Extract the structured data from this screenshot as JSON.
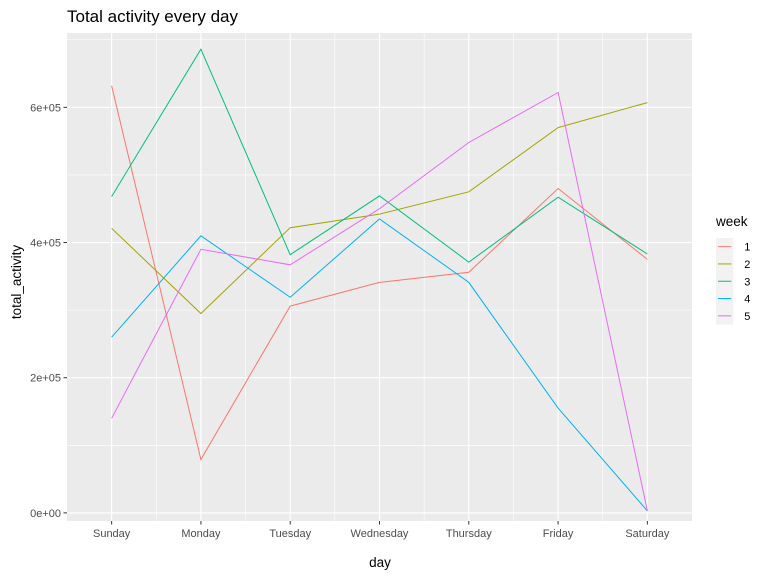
{
  "chart_data": {
    "type": "line",
    "title": "Total activity every day",
    "xlabel": "day",
    "ylabel": "total_activity",
    "categories": [
      "Sunday",
      "Monday",
      "Tuesday",
      "Wednesday",
      "Thursday",
      "Friday",
      "Saturday"
    ],
    "ylim": [
      -12000,
      710000
    ],
    "yticks": [
      0,
      200000,
      400000,
      600000
    ],
    "ytick_labels": [
      "0e+00",
      "2e+05",
      "4e+05",
      "6e+05"
    ],
    "grid": true,
    "legend_title": "week",
    "legend_position": "right",
    "series": [
      {
        "name": "1",
        "color": "#F8766D",
        "values": [
          632000,
          79000,
          306000,
          341000,
          356000,
          480000,
          375000
        ]
      },
      {
        "name": "2",
        "color": "#A3A500",
        "values": [
          421000,
          295000,
          422000,
          442000,
          475000,
          570000,
          607000
        ]
      },
      {
        "name": "3",
        "color": "#00BF7D",
        "values": [
          468000,
          686000,
          382000,
          469000,
          371000,
          467000,
          383000
        ]
      },
      {
        "name": "4",
        "color": "#00B0F6",
        "values": [
          260000,
          410000,
          319000,
          435000,
          341000,
          155000,
          3000
        ]
      },
      {
        "name": "5",
        "color": "#E76BF3",
        "values": [
          140000,
          390000,
          367000,
          450000,
          548000,
          622000,
          3000
        ]
      }
    ]
  }
}
